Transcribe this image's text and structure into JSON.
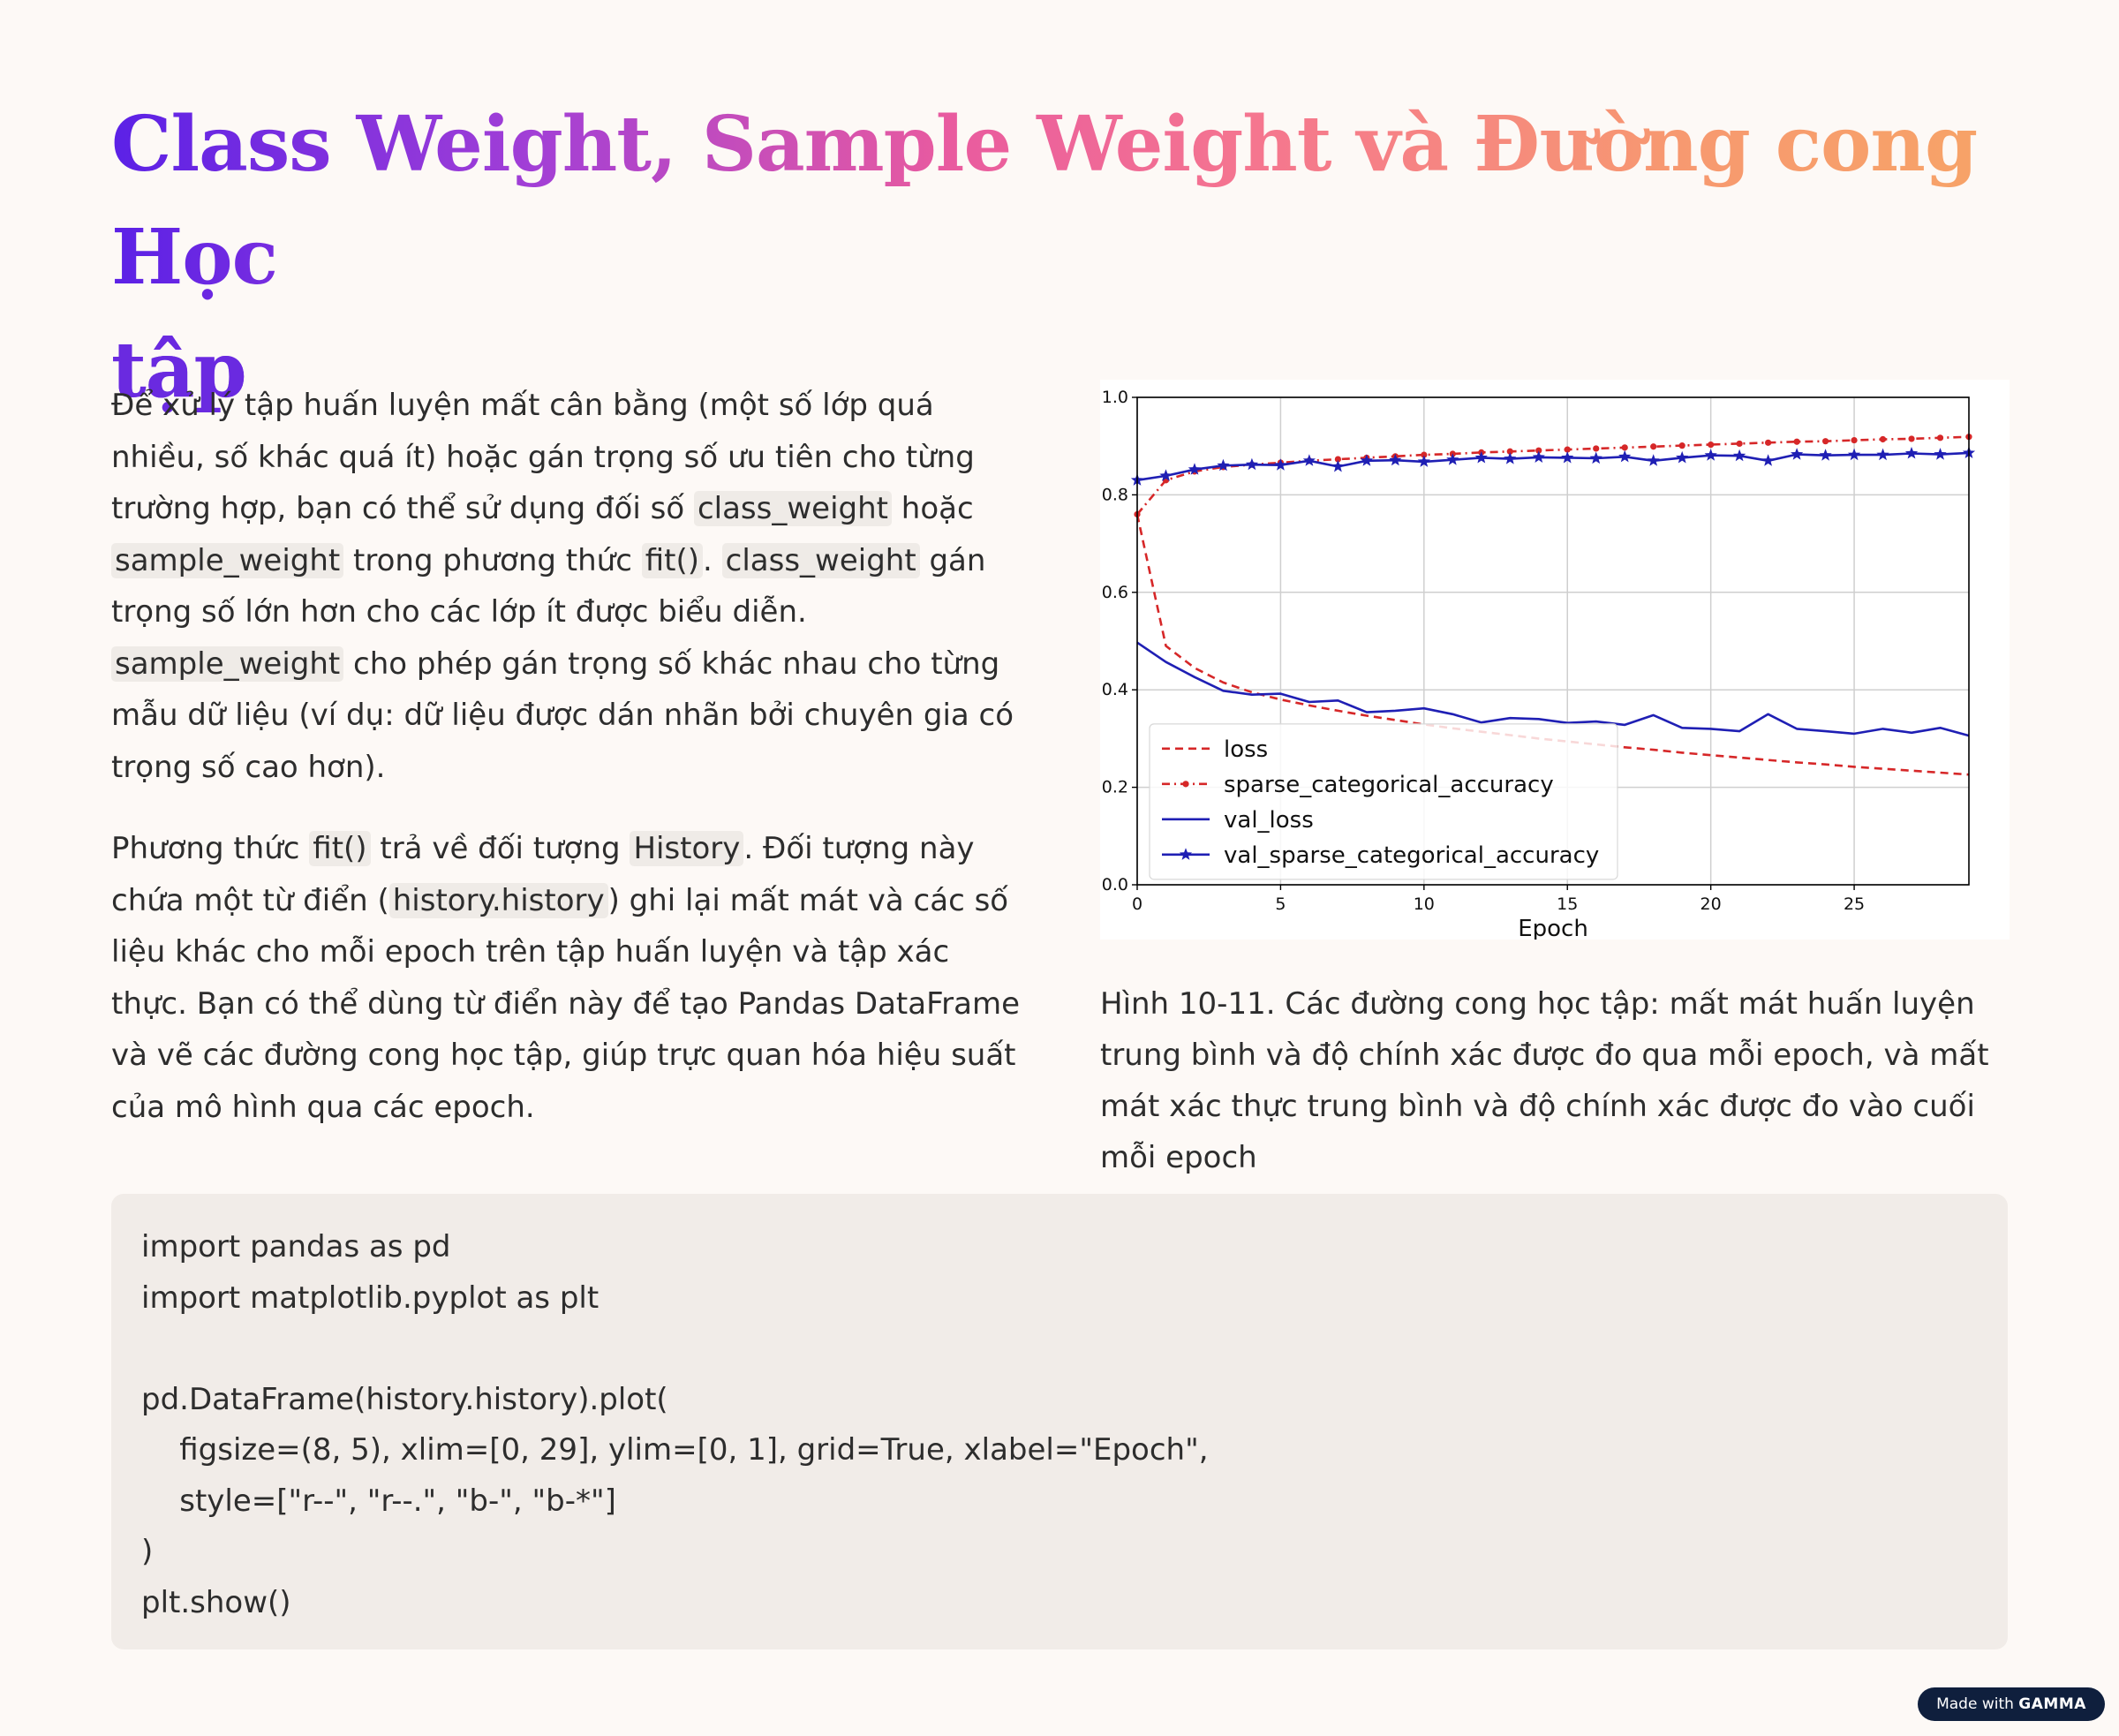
{
  "title": {
    "line1": "Class Weight, Sample Weight và Đường cong Học",
    "line2": "tập"
  },
  "paragraph1": {
    "t1": "Để xử lý tập huấn luyện mất cân bằng (một số lớp quá nhiều, số khác quá ít) hoặc gán trọng số ưu tiên cho từng trường hợp, bạn có thể sử dụng đối số ",
    "c1": "class_weight",
    "t2": " hoặc ",
    "c2": "sample_weight",
    "t3": " trong phương thức ",
    "c3": "fit()",
    "t4": ". ",
    "c4": "class_weight",
    "t5": " gán trọng số lớn hơn cho các lớp ít được biểu diễn. ",
    "c5": "sample_weight",
    "t6": " cho phép gán trọng số khác nhau cho từng mẫu dữ liệu (ví dụ: dữ liệu được dán nhãn bởi chuyên gia có trọng số cao hơn)."
  },
  "paragraph2": {
    "t1": "Phương thức ",
    "c1": "fit()",
    "t2": " trả về đối tượng ",
    "c2": "History",
    "t3": ". Đối tượng này chứa một từ điển (",
    "c3": "history.history",
    "t4": ") ghi lại mất mát và các số liệu khác cho mỗi epoch trên tập huấn luyện và tập xác thực. Bạn có thể dùng từ điển này để tạo Pandas DataFrame và vẽ các đường cong học tập, giúp trực quan hóa hiệu suất của mô hình qua các epoch."
  },
  "caption": "Hình 10-11. Các đường cong học tập: mất mát huấn luyện trung bình và độ chính xác được đo qua mỗi epoch, và mất mát xác thực trung bình và độ chính xác được đo vào cuối mỗi epoch",
  "code_lines": [
    "import pandas as pd",
    "import matplotlib.pyplot as plt",
    "",
    "pd.DataFrame(history.history).plot(",
    "    figsize=(8, 5), xlim=[0, 29], ylim=[0, 1], grid=True, xlabel=\"Epoch\",",
    "    style=[\"r--\", \"r--.\", \"b-\", \"b-*\"]",
    ")",
    "plt.show()"
  ],
  "badge": {
    "prefix": "Made with",
    "brand": "GAMMA"
  },
  "chart_data": {
    "type": "line",
    "xlabel": "Epoch",
    "ylabel": "",
    "xlim": [
      0,
      29
    ],
    "ylim": [
      0,
      1
    ],
    "grid": true,
    "legend_position": "lower-left",
    "x_ticks": [
      "0",
      "5",
      "10",
      "15",
      "20",
      "25"
    ],
    "y_ticks": [
      "0.0",
      "0.2",
      "0.4",
      "0.6",
      "0.8",
      "1.0"
    ],
    "x": [
      0,
      1,
      2,
      3,
      4,
      5,
      6,
      7,
      8,
      9,
      10,
      11,
      12,
      13,
      14,
      15,
      16,
      17,
      18,
      19,
      20,
      21,
      22,
      23,
      24,
      25,
      26,
      27,
      28,
      29
    ],
    "series": [
      {
        "name": "loss",
        "style": "dashed",
        "color": "#d62728",
        "marker": "none",
        "values": [
          0.76,
          0.49,
          0.445,
          0.415,
          0.395,
          0.38,
          0.368,
          0.357,
          0.347,
          0.338,
          0.329,
          0.321,
          0.314,
          0.307,
          0.3,
          0.294,
          0.288,
          0.282,
          0.277,
          0.271,
          0.266,
          0.261,
          0.256,
          0.251,
          0.247,
          0.242,
          0.238,
          0.234,
          0.23,
          0.226
        ]
      },
      {
        "name": "sparse_categorical_accuracy",
        "style": "dashdot",
        "color": "#d62728",
        "marker": "dot",
        "values": [
          0.76,
          0.83,
          0.848,
          0.857,
          0.862,
          0.866,
          0.87,
          0.873,
          0.876,
          0.879,
          0.882,
          0.884,
          0.887,
          0.889,
          0.891,
          0.893,
          0.895,
          0.897,
          0.899,
          0.901,
          0.903,
          0.905,
          0.907,
          0.909,
          0.91,
          0.912,
          0.914,
          0.915,
          0.917,
          0.919
        ]
      },
      {
        "name": "val_loss",
        "style": "solid",
        "color": "#1f1fb4",
        "marker": "none",
        "values": [
          0.497,
          0.457,
          0.426,
          0.398,
          0.39,
          0.392,
          0.375,
          0.378,
          0.354,
          0.357,
          0.362,
          0.35,
          0.333,
          0.342,
          0.34,
          0.332,
          0.335,
          0.328,
          0.348,
          0.322,
          0.32,
          0.315,
          0.35,
          0.32,
          0.315,
          0.31,
          0.32,
          0.312,
          0.322,
          0.306
        ]
      },
      {
        "name": "val_sparse_categorical_accuracy",
        "style": "solid",
        "color": "#1f1fb4",
        "marker": "star",
        "values": [
          0.83,
          0.839,
          0.852,
          0.86,
          0.862,
          0.861,
          0.87,
          0.858,
          0.87,
          0.871,
          0.868,
          0.872,
          0.876,
          0.874,
          0.877,
          0.876,
          0.875,
          0.878,
          0.87,
          0.876,
          0.881,
          0.88,
          0.87,
          0.883,
          0.881,
          0.882,
          0.882,
          0.885,
          0.883,
          0.886
        ]
      }
    ]
  }
}
